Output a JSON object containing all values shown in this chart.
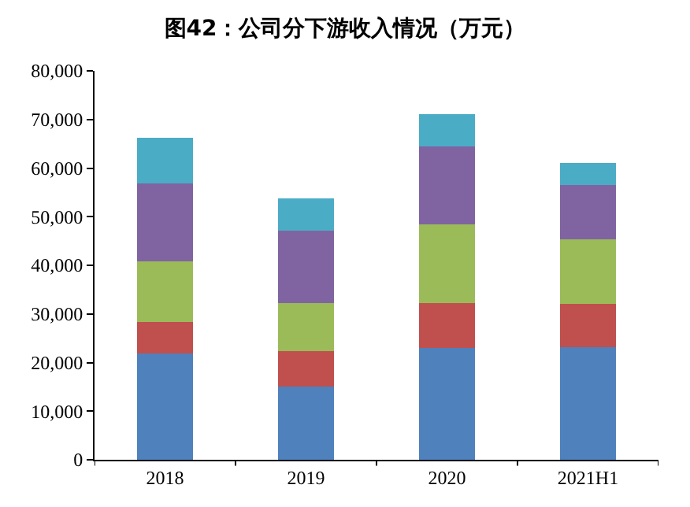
{
  "chart_data": {
    "type": "bar",
    "title": "图42：公司分下游收入情况（万元）",
    "stacked": true,
    "categories": [
      "2018",
      "2019",
      "2020",
      "2021H1"
    ],
    "series": [
      {
        "color": "#4f81bd",
        "values": [
          21900,
          15000,
          23000,
          23200
        ]
      },
      {
        "color": "#c0504d",
        "values": [
          6400,
          7400,
          9300,
          8900
        ]
      },
      {
        "color": "#9bbb59",
        "values": [
          12500,
          9900,
          16200,
          13300
        ]
      },
      {
        "color": "#8064a2",
        "values": [
          16100,
          14800,
          15900,
          11200
        ]
      },
      {
        "color": "#4bacc6",
        "values": [
          9400,
          6600,
          6700,
          4500
        ]
      }
    ],
    "ylim": [
      0,
      80000
    ],
    "yticks": [
      0,
      {
        "value": 10000,
        "label": "10,000"
      },
      {
        "value": 20000,
        "label": "20,000"
      },
      {
        "value": 30000,
        "label": "30,000"
      },
      {
        "value": 40000,
        "label": "40,000"
      },
      {
        "value": 50000,
        "label": "50,000"
      },
      {
        "value": 60000,
        "label": "60,000"
      },
      {
        "value": 70000,
        "label": "70,000"
      },
      {
        "value": 80000,
        "label": "80,000"
      }
    ]
  }
}
